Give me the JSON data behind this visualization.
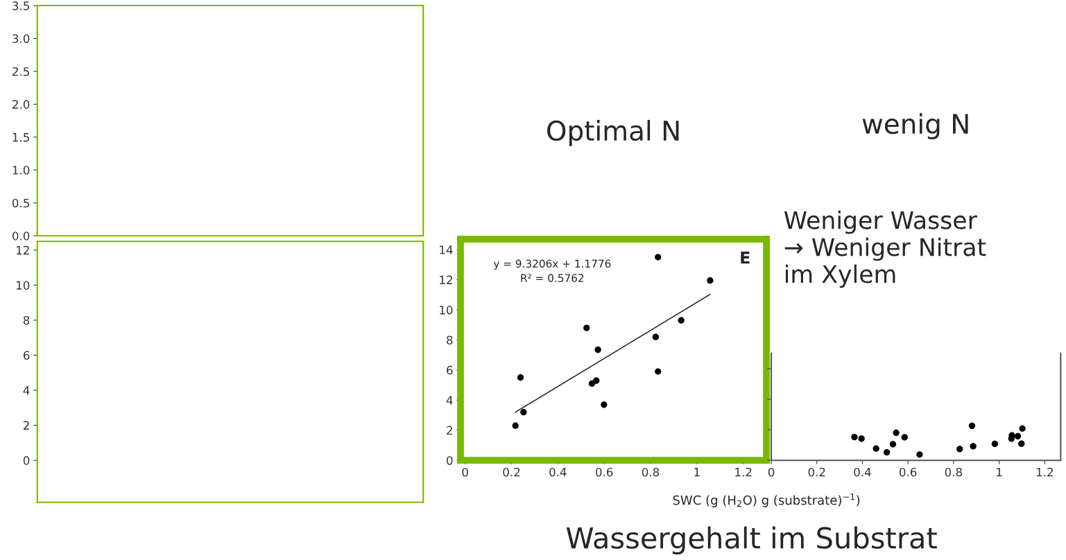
{
  "chart_data": [
    {
      "type": "scatter",
      "categories": [
        null
      ],
      "values": [
        null
      ],
      "ylim": [
        0,
        3.5
      ],
      "yticks": [
        {
          "value": 0,
          "label": "0.0"
        },
        {
          "value": 0.5,
          "label": "0.5"
        },
        {
          "value": 1,
          "label": "1.0"
        },
        {
          "value": 1.5,
          "label": "1.5"
        },
        {
          "value": 2,
          "label": "2.0"
        },
        {
          "value": 2.5,
          "label": "2.5"
        },
        {
          "value": 3,
          "label": "3.0"
        },
        {
          "value": 3.5,
          "label": "3.5"
        }
      ],
      "tick_labels": "y"
    },
    {
      "type": "scatter",
      "categories": [
        null
      ],
      "values": [
        null
      ],
      "ylim": [
        -2.4,
        12.5
      ],
      "yticks": [
        0,
        2,
        4,
        6,
        8,
        10,
        12
      ],
      "tick_labels": "y"
    },
    {
      "type": "scatter",
      "title": "Optimal N",
      "xlabel": "SWC (g (H$_{2}$O) g (substrate)$^{−1}$)",
      "xlim": [
        -0.02,
        1.3
      ],
      "ylim": [
        0,
        14.7
      ],
      "xticks": [
        0,
        0.2,
        0.4,
        0.6,
        0.8,
        1,
        1.2
      ],
      "yticks": [
        0,
        2,
        4,
        6,
        8,
        10,
        12,
        14
      ],
      "annotations": [
        "y = 9.3206x + 1.1776",
        "R² = 0.5762",
        "E"
      ],
      "series": [
        {
          "color": "#000000",
          "x": [
            0.217,
            0.252,
            0.239,
            0.524,
            0.547,
            0.566,
            0.573,
            0.599,
            0.822,
            0.832,
            0.832,
            0.932,
            1.057
          ],
          "values": [
            2.3,
            3.2,
            5.5,
            8.8,
            5.1,
            5.3,
            7.35,
            3.7,
            8.2,
            5.9,
            13.5,
            9.3,
            11.95
          ]
        },
        {
          "type": "line",
          "color": "#333333",
          "x": [
            0.217,
            1.057
          ],
          "values": [
            3.2,
            11.03
          ]
        }
      ]
    },
    {
      "type": "scatter",
      "title": "wenig N",
      "xlim": [
        0,
        1.27
      ],
      "ylim": [
        0,
        7
      ],
      "xticks": [
        0,
        0.2,
        0.4,
        0.6,
        0.8,
        1,
        1.2
      ],
      "yticks": [
        0,
        2,
        4,
        6
      ],
      "tick_labels": "x",
      "annotations": [
        "Weniger Wasser\n→ Weniger Nitrat\nim Xylem",
        "Wassergehalt im Substrat"
      ],
      "series": [
        {
          "color": "#000000",
          "x": [
            0.365,
            0.396,
            0.46,
            0.507,
            0.534,
            0.548,
            0.585,
            0.651,
            0.827,
            0.881,
            0.886,
            0.981,
            1.054,
            1.056,
            1.082,
            1.102,
            1.098
          ],
          "values": [
            1.52,
            1.42,
            0.77,
            0.52,
            1.05,
            1.8,
            1.51,
            0.38,
            0.74,
            2.26,
            0.92,
            1.08,
            1.42,
            1.63,
            1.58,
            2.08,
            1.09
          ]
        }
      ]
    }
  ]
}
